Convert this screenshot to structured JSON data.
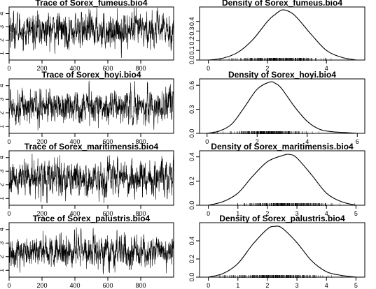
{
  "chart_data": [
    {
      "type": "line",
      "title": "Trace of Sorex_fumeus.bio4",
      "xlabel": "",
      "ylabel": "",
      "xlim": [
        0,
        1000
      ],
      "ylim": [
        0.5,
        4.5
      ],
      "x_ticks": [
        0,
        200,
        400,
        600,
        800
      ],
      "x_tick_labels": [
        "0",
        "200",
        "400",
        "600",
        "800"
      ],
      "y_ticks": [
        1,
        2,
        3,
        4
      ],
      "y_tick_labels": [
        "1",
        "2",
        "3",
        "4"
      ],
      "series": [
        {
          "n": 1000,
          "mean": 2.75,
          "sd": 0.65
        }
      ]
    },
    {
      "type": "line",
      "title": "Density of Sorex_fumeus.bio4",
      "xlabel": "",
      "ylabel": "",
      "xlim": [
        -0.3,
        5.3
      ],
      "ylim": [
        0,
        0.55
      ],
      "x_ticks": [
        0,
        2,
        4
      ],
      "x_tick_labels": [
        "0",
        "2",
        "4"
      ],
      "y_ticks": [
        0,
        0.1,
        0.2,
        0.3,
        0.4
      ],
      "y_tick_labels": [
        "0.0",
        "0.1",
        "0.2",
        "0.3",
        "0.4"
      ],
      "series": [
        {
          "x": [
            0.0,
            0.5,
            1.0,
            1.5,
            2.0,
            2.25,
            2.5,
            2.75,
            3.0,
            3.5,
            4.0,
            4.5,
            5.0
          ],
          "y": [
            0.0,
            0.02,
            0.08,
            0.21,
            0.4,
            0.47,
            0.52,
            0.5,
            0.44,
            0.26,
            0.1,
            0.03,
            0.0
          ]
        }
      ]
    },
    {
      "type": "line",
      "title": "Trace of Sorex_hoyi.bio4",
      "xlabel": "",
      "ylabel": "",
      "xlim": [
        0,
        1000
      ],
      "ylim": [
        0.5,
        4.5
      ],
      "x_ticks": [
        0,
        200,
        400,
        600,
        800
      ],
      "x_tick_labels": [
        "0",
        "200",
        "400",
        "600",
        "800"
      ],
      "y_ticks": [
        1,
        2,
        3,
        4
      ],
      "y_tick_labels": [
        "1",
        "2",
        "3",
        "4"
      ],
      "series": [
        {
          "n": 1000,
          "mean": 2.5,
          "sd": 0.6
        }
      ]
    },
    {
      "type": "line",
      "title": "Density of Sorex_hoyi.bio4",
      "xlabel": "",
      "ylabel": "",
      "xlim": [
        -0.3,
        6.3
      ],
      "ylim": [
        0,
        0.68
      ],
      "x_ticks": [
        0,
        2,
        4,
        6
      ],
      "x_tick_labels": [
        "0",
        "2",
        "4",
        "6"
      ],
      "y_ticks": [
        0,
        0.3,
        0.6
      ],
      "y_tick_labels": [
        "0.0",
        "0.3",
        "0.6"
      ],
      "series": [
        {
          "x": [
            0.0,
            0.5,
            1.0,
            1.5,
            2.0,
            2.5,
            2.75,
            3.0,
            3.5,
            4.0,
            4.5,
            5.0,
            5.5,
            6.0
          ],
          "y": [
            0.0,
            0.03,
            0.12,
            0.33,
            0.55,
            0.64,
            0.62,
            0.55,
            0.33,
            0.15,
            0.05,
            0.02,
            0.01,
            0.0
          ]
        }
      ]
    },
    {
      "type": "line",
      "title": "Trace of Sorex_maritimensis.bio4",
      "xlabel": "",
      "ylabel": "",
      "xlim": [
        0,
        1000
      ],
      "ylim": [
        0.5,
        4.5
      ],
      "x_ticks": [
        0,
        200,
        400,
        600,
        800
      ],
      "x_tick_labels": [
        "0",
        "200",
        "400",
        "600",
        "800"
      ],
      "y_ticks": [
        1,
        2,
        3,
        4
      ],
      "y_tick_labels": [
        "1",
        "2",
        "3",
        "4"
      ],
      "series": [
        {
          "n": 1000,
          "mean": 2.5,
          "sd": 0.65
        }
      ]
    },
    {
      "type": "line",
      "title": "Density of Sorex_maritimensis.bio4",
      "xlabel": "",
      "ylabel": "",
      "xlim": [
        -0.3,
        5.3
      ],
      "ylim": [
        0,
        0.45
      ],
      "x_ticks": [
        0,
        1,
        2,
        3,
        4,
        5
      ],
      "x_tick_labels": [
        "0",
        "1",
        "2",
        "3",
        "4",
        "5"
      ],
      "y_ticks": [
        0,
        0.2,
        0.4
      ],
      "y_tick_labels": [
        "0.0",
        "0.2",
        "0.4"
      ],
      "series": [
        {
          "x": [
            0.0,
            0.5,
            1.0,
            1.5,
            2.0,
            2.5,
            2.75,
            3.0,
            3.5,
            4.0,
            4.5,
            5.0
          ],
          "y": [
            0.0,
            0.03,
            0.1,
            0.24,
            0.36,
            0.41,
            0.42,
            0.39,
            0.25,
            0.1,
            0.03,
            0.0
          ]
        }
      ]
    },
    {
      "type": "line",
      "title": "Trace of Sorex_palustris.bio4",
      "xlabel": "",
      "ylabel": "",
      "xlim": [
        0,
        1000
      ],
      "ylim": [
        0.5,
        4.5
      ],
      "x_ticks": [
        0,
        200,
        400,
        600,
        800
      ],
      "x_tick_labels": [
        "0",
        "200",
        "400",
        "600",
        "800"
      ],
      "y_ticks": [
        1,
        2,
        3,
        4
      ],
      "y_tick_labels": [
        "1",
        "2",
        "3",
        "4"
      ],
      "series": [
        {
          "n": 1000,
          "mean": 2.4,
          "sd": 0.6
        }
      ]
    },
    {
      "type": "line",
      "title": "Density of Sorex_palustris.bio4",
      "xlabel": "",
      "ylabel": "",
      "xlim": [
        -0.3,
        5.3
      ],
      "ylim": [
        0,
        0.6
      ],
      "x_ticks": [
        0,
        1,
        2,
        3,
        4,
        5
      ],
      "x_tick_labels": [
        "0",
        "1",
        "2",
        "3",
        "4",
        "5"
      ],
      "y_ticks": [
        0,
        0.2,
        0.4
      ],
      "y_tick_labels": [
        "0.0",
        "0.2",
        "0.4"
      ],
      "series": [
        {
          "x": [
            0.0,
            0.5,
            1.0,
            1.5,
            2.0,
            2.25,
            2.5,
            3.0,
            3.5,
            4.0,
            4.5,
            5.0
          ],
          "y": [
            0.0,
            0.04,
            0.15,
            0.36,
            0.53,
            0.56,
            0.54,
            0.38,
            0.18,
            0.06,
            0.02,
            0.0
          ]
        }
      ]
    }
  ]
}
